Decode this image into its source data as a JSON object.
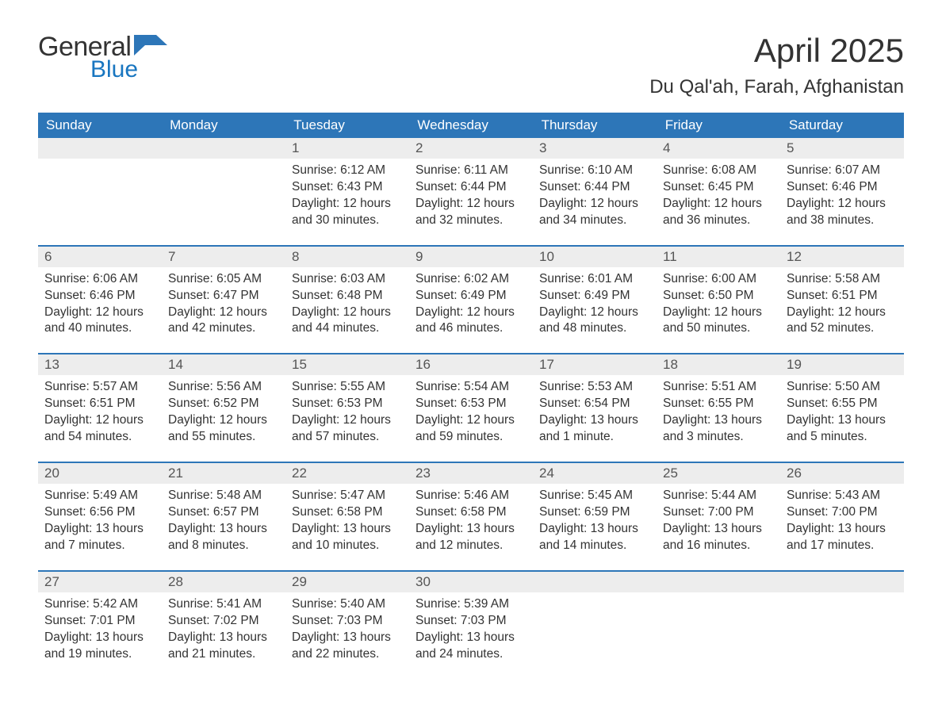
{
  "logo": {
    "text1": "General",
    "text2": "Blue",
    "color_general": "#333333",
    "color_blue": "#1976c0",
    "flag_color": "#2d76b8"
  },
  "header": {
    "month_title": "April 2025",
    "location": "Du Qal'ah, Farah, Afghanistan"
  },
  "style": {
    "header_bg": "#2d76b8",
    "header_fg": "#ffffff",
    "daynum_bg": "#ededed",
    "daynum_fg": "#555555",
    "body_text": "#333333",
    "week_divider": "#2d76b8",
    "page_bg": "#ffffff",
    "weekday_fontsize": 17,
    "daynum_fontsize": 17,
    "daytext_fontsize": 15.5,
    "title_fontsize": 42,
    "location_fontsize": 24
  },
  "weekdays": [
    "Sunday",
    "Monday",
    "Tuesday",
    "Wednesday",
    "Thursday",
    "Friday",
    "Saturday"
  ],
  "weeks": [
    [
      {
        "n": "",
        "sunrise": "",
        "sunset": "",
        "daylight": ""
      },
      {
        "n": "",
        "sunrise": "",
        "sunset": "",
        "daylight": ""
      },
      {
        "n": "1",
        "sunrise": "6:12 AM",
        "sunset": "6:43 PM",
        "daylight": "12 hours and 30 minutes."
      },
      {
        "n": "2",
        "sunrise": "6:11 AM",
        "sunset": "6:44 PM",
        "daylight": "12 hours and 32 minutes."
      },
      {
        "n": "3",
        "sunrise": "6:10 AM",
        "sunset": "6:44 PM",
        "daylight": "12 hours and 34 minutes."
      },
      {
        "n": "4",
        "sunrise": "6:08 AM",
        "sunset": "6:45 PM",
        "daylight": "12 hours and 36 minutes."
      },
      {
        "n": "5",
        "sunrise": "6:07 AM",
        "sunset": "6:46 PM",
        "daylight": "12 hours and 38 minutes."
      }
    ],
    [
      {
        "n": "6",
        "sunrise": "6:06 AM",
        "sunset": "6:46 PM",
        "daylight": "12 hours and 40 minutes."
      },
      {
        "n": "7",
        "sunrise": "6:05 AM",
        "sunset": "6:47 PM",
        "daylight": "12 hours and 42 minutes."
      },
      {
        "n": "8",
        "sunrise": "6:03 AM",
        "sunset": "6:48 PM",
        "daylight": "12 hours and 44 minutes."
      },
      {
        "n": "9",
        "sunrise": "6:02 AM",
        "sunset": "6:49 PM",
        "daylight": "12 hours and 46 minutes."
      },
      {
        "n": "10",
        "sunrise": "6:01 AM",
        "sunset": "6:49 PM",
        "daylight": "12 hours and 48 minutes."
      },
      {
        "n": "11",
        "sunrise": "6:00 AM",
        "sunset": "6:50 PM",
        "daylight": "12 hours and 50 minutes."
      },
      {
        "n": "12",
        "sunrise": "5:58 AM",
        "sunset": "6:51 PM",
        "daylight": "12 hours and 52 minutes."
      }
    ],
    [
      {
        "n": "13",
        "sunrise": "5:57 AM",
        "sunset": "6:51 PM",
        "daylight": "12 hours and 54 minutes."
      },
      {
        "n": "14",
        "sunrise": "5:56 AM",
        "sunset": "6:52 PM",
        "daylight": "12 hours and 55 minutes."
      },
      {
        "n": "15",
        "sunrise": "5:55 AM",
        "sunset": "6:53 PM",
        "daylight": "12 hours and 57 minutes."
      },
      {
        "n": "16",
        "sunrise": "5:54 AM",
        "sunset": "6:53 PM",
        "daylight": "12 hours and 59 minutes."
      },
      {
        "n": "17",
        "sunrise": "5:53 AM",
        "sunset": "6:54 PM",
        "daylight": "13 hours and 1 minute."
      },
      {
        "n": "18",
        "sunrise": "5:51 AM",
        "sunset": "6:55 PM",
        "daylight": "13 hours and 3 minutes."
      },
      {
        "n": "19",
        "sunrise": "5:50 AM",
        "sunset": "6:55 PM",
        "daylight": "13 hours and 5 minutes."
      }
    ],
    [
      {
        "n": "20",
        "sunrise": "5:49 AM",
        "sunset": "6:56 PM",
        "daylight": "13 hours and 7 minutes."
      },
      {
        "n": "21",
        "sunrise": "5:48 AM",
        "sunset": "6:57 PM",
        "daylight": "13 hours and 8 minutes."
      },
      {
        "n": "22",
        "sunrise": "5:47 AM",
        "sunset": "6:58 PM",
        "daylight": "13 hours and 10 minutes."
      },
      {
        "n": "23",
        "sunrise": "5:46 AM",
        "sunset": "6:58 PM",
        "daylight": "13 hours and 12 minutes."
      },
      {
        "n": "24",
        "sunrise": "5:45 AM",
        "sunset": "6:59 PM",
        "daylight": "13 hours and 14 minutes."
      },
      {
        "n": "25",
        "sunrise": "5:44 AM",
        "sunset": "7:00 PM",
        "daylight": "13 hours and 16 minutes."
      },
      {
        "n": "26",
        "sunrise": "5:43 AM",
        "sunset": "7:00 PM",
        "daylight": "13 hours and 17 minutes."
      }
    ],
    [
      {
        "n": "27",
        "sunrise": "5:42 AM",
        "sunset": "7:01 PM",
        "daylight": "13 hours and 19 minutes."
      },
      {
        "n": "28",
        "sunrise": "5:41 AM",
        "sunset": "7:02 PM",
        "daylight": "13 hours and 21 minutes."
      },
      {
        "n": "29",
        "sunrise": "5:40 AM",
        "sunset": "7:03 PM",
        "daylight": "13 hours and 22 minutes."
      },
      {
        "n": "30",
        "sunrise": "5:39 AM",
        "sunset": "7:03 PM",
        "daylight": "13 hours and 24 minutes."
      },
      {
        "n": "",
        "sunrise": "",
        "sunset": "",
        "daylight": ""
      },
      {
        "n": "",
        "sunrise": "",
        "sunset": "",
        "daylight": ""
      },
      {
        "n": "",
        "sunrise": "",
        "sunset": "",
        "daylight": ""
      }
    ]
  ],
  "labels": {
    "sunrise": "Sunrise:",
    "sunset": "Sunset:",
    "daylight": "Daylight:"
  }
}
